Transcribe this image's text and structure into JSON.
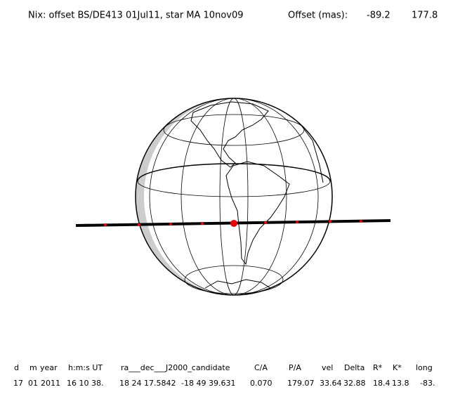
{
  "header": {
    "title": "Nix: offset BS/DE413 01Jul11, star MA 10nov09",
    "offset_label": "Offset (mas):",
    "offset_x": "-89.2",
    "offset_y": "177.8"
  },
  "table": {
    "columns": [
      "d",
      "m",
      "year",
      "h:m:s UT",
      "ra___dec___J2000_candidate",
      "C/A",
      "P/A",
      "vel",
      "Delta",
      "R*",
      "K*",
      "long"
    ],
    "rows": [
      [
        "17",
        "01",
        "2011",
        "16 10 38.",
        "18 24 17.5842",
        "-18 49 39.631",
        "0.070",
        "179.07",
        "33.64",
        "32.88",
        "18.4",
        "13.8",
        "-83."
      ]
    ]
  }
}
